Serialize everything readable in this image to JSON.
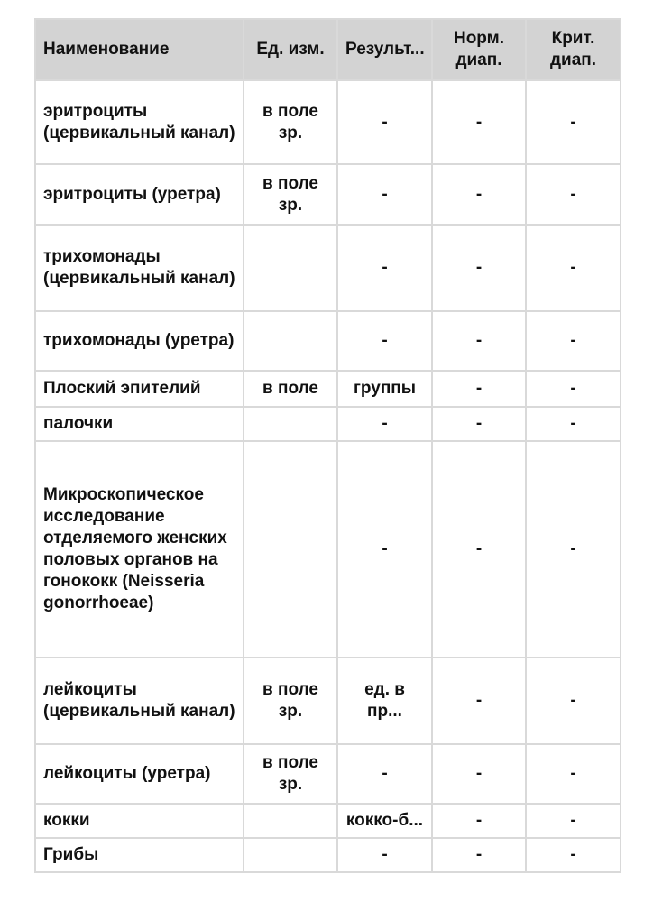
{
  "header": [
    "Наименование",
    "Ед. изм.",
    "Результ...",
    "Норм. диап.",
    "Крит. диап."
  ],
  "rows": [
    {
      "name": "эритроциты (цервикальный канал)",
      "unit": "в поле зр.",
      "result": "-",
      "norm": "-",
      "crit": "-"
    },
    {
      "name": "эритроциты (уретра)",
      "unit": "в поле зр.",
      "result": "-",
      "norm": "-",
      "crit": "-"
    },
    {
      "name": "трихомонады (цервикальный канал)",
      "unit": "",
      "result": "-",
      "norm": "-",
      "crit": "-"
    },
    {
      "name": "трихомонады (уретра)",
      "unit": "",
      "result": "-",
      "norm": "-",
      "crit": "-"
    },
    {
      "name": "Плоский эпителий",
      "unit": "в поле",
      "result": "группы",
      "norm": "-",
      "crit": "-"
    },
    {
      "name": "палочки",
      "unit": "",
      "result": "-",
      "norm": "-",
      "crit": "-"
    },
    {
      "name": "Микроскопическое исследование отделяемого женских половых органов на гонококк (Neisseria gonorrhoeae)",
      "unit": "",
      "result": "-",
      "norm": "-",
      "crit": "-"
    },
    {
      "name": "лейкоциты (цервикальный канал)",
      "unit": "в поле зр.",
      "result": "ед. в пр...",
      "norm": "-",
      "crit": "-"
    },
    {
      "name": "лейкоциты (уретра)",
      "unit": "в поле зр.",
      "result": "-",
      "norm": "-",
      "crit": "-"
    },
    {
      "name": "кокки",
      "unit": "",
      "result": "кокко-б...",
      "norm": "-",
      "crit": "-"
    },
    {
      "name": "Грибы",
      "unit": "",
      "result": "-",
      "norm": "-",
      "crit": "-"
    }
  ]
}
